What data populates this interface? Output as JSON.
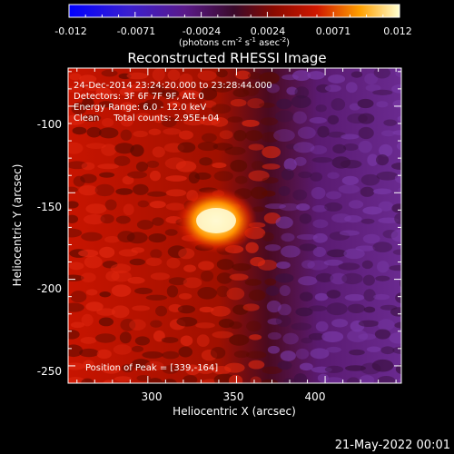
{
  "colorbar": {
    "ticks": [
      "-0.012",
      "-0.0071",
      "-0.0024",
      "0.0024",
      "0.0071",
      "0.012"
    ],
    "unit_main": "(photons cm",
    "unit_sup1": "-2",
    "unit_mid": " s",
    "unit_sup2": "-1",
    "unit_end": " asec",
    "unit_sup3": "-2",
    "unit_close": ")"
  },
  "image": {
    "title": "Reconstructed RHESSI Image",
    "info_lines": [
      "24-Dec-2014 23:24:20.000 to 23:28:44.000",
      "Detectors: 3F 6F 7F 9F, Att 0",
      "Energy Range: 6.0 - 12.0 keV",
      "Clean     Total counts: 2.95E+04"
    ],
    "peak_label": "Position of Peak = [339,-164]",
    "peak": {
      "x": 339,
      "y": -164
    }
  },
  "axes": {
    "xlabel": "Heliocentric X (arcsec)",
    "ylabel": "Heliocentric Y (arcsec)",
    "xticks": [
      "300",
      "350",
      "400"
    ],
    "yticks": [
      "-100",
      "-150",
      "-200",
      "-250"
    ],
    "xrange": [
      255,
      443
    ],
    "yrange": [
      -260,
      -78
    ]
  },
  "footer": {
    "date": "21-May-2022 00:01"
  }
}
